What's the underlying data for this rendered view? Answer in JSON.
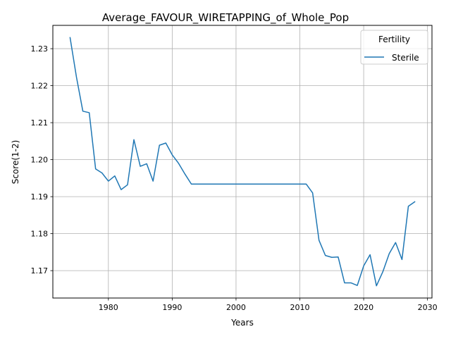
{
  "chart_data": {
    "type": "line",
    "title": "Average_FAVOUR_WIRETAPPING_of_Whole_Pop",
    "xlabel": "Years",
    "ylabel": "Score(1-2)",
    "xlim": [
      1971.3,
      2030.7
    ],
    "ylim": [
      1.1626,
      1.2363
    ],
    "xticks": [
      1980,
      1990,
      2000,
      2010,
      2020,
      2030
    ],
    "yticks": [
      1.17,
      1.18,
      1.19,
      1.2,
      1.21,
      1.22,
      1.23
    ],
    "ytick_labels": [
      "1.17",
      "1.18",
      "1.19",
      "1.20",
      "1.21",
      "1.22",
      "1.23"
    ],
    "grid": true,
    "legend": {
      "title": "Fertility",
      "placement": "top-right"
    },
    "series": [
      {
        "name": "Sterile",
        "color": "#1f77b4",
        "x": [
          1974,
          1975,
          1976,
          1977,
          1978,
          1979,
          1980,
          1981,
          1982,
          1983,
          1984,
          1985,
          1986,
          1987,
          1988,
          1989,
          1990,
          1991,
          1992,
          1993,
          1994,
          1995,
          1996,
          1997,
          1998,
          1999,
          2000,
          2001,
          2002,
          2003,
          2004,
          2005,
          2006,
          2007,
          2008,
          2009,
          2010,
          2011,
          2012,
          2013,
          2014,
          2015,
          2016,
          2017,
          2018,
          2019,
          2020,
          2021,
          2022,
          2023,
          2024,
          2025,
          2026,
          2027,
          2028
        ],
        "y": [
          1.233,
          1.2223,
          1.2131,
          1.2127,
          1.1975,
          1.1964,
          1.1942,
          1.1956,
          1.1919,
          1.1932,
          1.2054,
          1.1982,
          1.1989,
          1.1942,
          1.2039,
          1.2045,
          1.2013,
          1.199,
          1.1961,
          1.1934,
          1.1934,
          1.1934,
          1.1934,
          1.1934,
          1.1934,
          1.1934,
          1.1934,
          1.1934,
          1.1934,
          1.1934,
          1.1934,
          1.1934,
          1.1934,
          1.1934,
          1.1934,
          1.1934,
          1.1934,
          1.1934,
          1.191,
          1.1782,
          1.1741,
          1.1736,
          1.1737,
          1.1667,
          1.1667,
          1.166,
          1.1713,
          1.1743,
          1.1659,
          1.1697,
          1.1746,
          1.1776,
          1.173,
          1.1874,
          1.1886
        ]
      }
    ]
  }
}
